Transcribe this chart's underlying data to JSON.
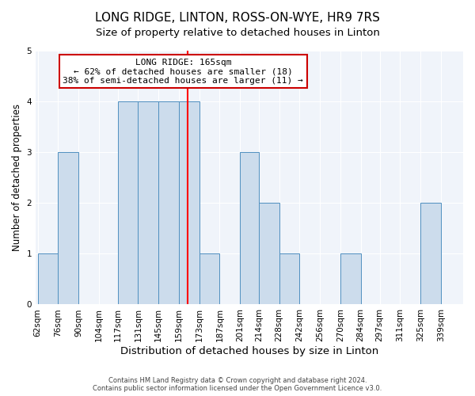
{
  "title": "LONG RIDGE, LINTON, ROSS-ON-WYE, HR9 7RS",
  "subtitle": "Size of property relative to detached houses in Linton",
  "xlabel": "Distribution of detached houses by size in Linton",
  "ylabel": "Number of detached properties",
  "bin_edges": [
    62,
    76,
    90,
    104,
    117,
    131,
    145,
    159,
    173,
    187,
    201,
    214,
    228,
    242,
    256,
    270,
    284,
    297,
    311,
    325,
    339
  ],
  "counts": [
    1,
    3,
    0,
    0,
    4,
    4,
    4,
    4,
    1,
    0,
    3,
    2,
    1,
    0,
    0,
    1,
    0,
    0,
    0,
    2
  ],
  "bar_color": "#ccdcec",
  "bar_edge_color": "#5090c0",
  "red_line_x": 165,
  "annotation_title": "LONG RIDGE: 165sqm",
  "annotation_line1": "← 62% of detached houses are smaller (18)",
  "annotation_line2": "38% of semi-detached houses are larger (11) →",
  "annotation_box_color": "#ffffff",
  "annotation_border_color": "#cc0000",
  "ylim": [
    0,
    5
  ],
  "yticks": [
    0,
    1,
    2,
    3,
    4,
    5
  ],
  "title_fontsize": 11,
  "subtitle_fontsize": 9.5,
  "xlabel_fontsize": 9.5,
  "ylabel_fontsize": 8.5,
  "tick_fontsize": 7.5,
  "footer1": "Contains HM Land Registry data © Crown copyright and database right 2024.",
  "footer2": "Contains public sector information licensed under the Open Government Licence v3.0.",
  "background_color": "#ffffff",
  "plot_bg_color": "#f0f4fa",
  "grid_color": "#ffffff"
}
